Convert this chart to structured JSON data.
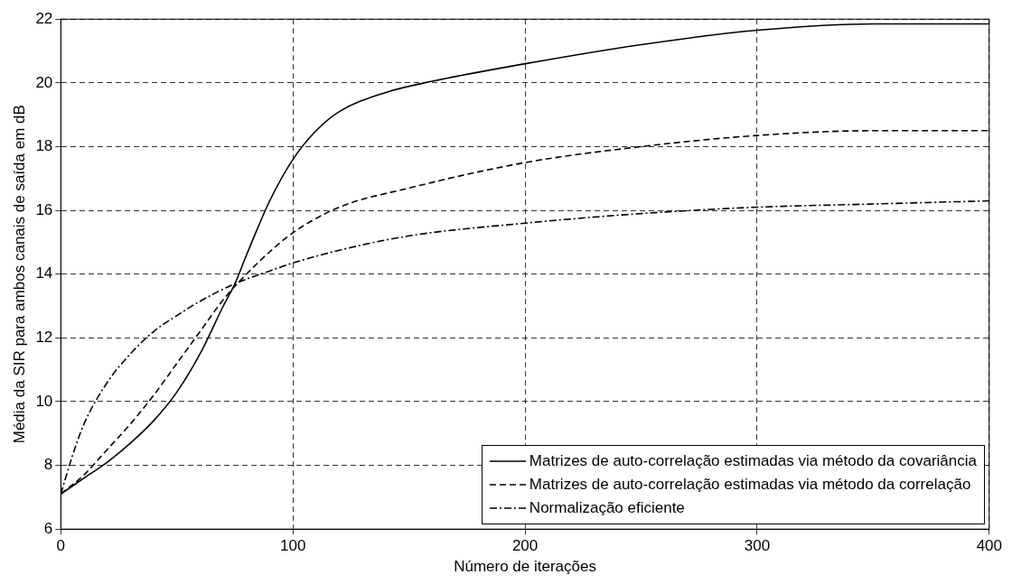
{
  "chart_data": {
    "type": "line",
    "xlabel": "Número de iterações",
    "ylabel": "Média da SIR para ambos canais de saída em dB",
    "xlim": [
      0,
      400
    ],
    "xticks": [
      0,
      100,
      200,
      300,
      400
    ],
    "ylim": [
      6,
      22
    ],
    "yticks": [
      6,
      8,
      10,
      12,
      14,
      16,
      18,
      20,
      22
    ],
    "grid": true,
    "legend": "bottom right",
    "marker": "none",
    "series": [
      {
        "name": "Matrizes de auto-correlação estimadas via método da covariância",
        "color": "#000000",
        "line_style": "solid",
        "x": [
          0,
          10,
          20,
          30,
          40,
          50,
          60,
          70,
          75,
          80,
          90,
          100,
          110,
          120,
          140,
          160,
          200,
          250,
          300,
          350,
          400
        ],
        "values": [
          7.1,
          7.6,
          8.1,
          8.7,
          9.4,
          10.3,
          11.5,
          13.0,
          13.7,
          14.6,
          16.3,
          17.6,
          18.5,
          19.1,
          19.7,
          20.05,
          20.6,
          21.2,
          21.65,
          21.85,
          21.85
        ]
      },
      {
        "name": "Matrizes de auto-correlação estimadas via método da correlação",
        "color": "#000000",
        "line_style": "dashed",
        "x": [
          0,
          10,
          20,
          30,
          40,
          50,
          60,
          70,
          80,
          90,
          100,
          120,
          150,
          200,
          250,
          300,
          350,
          400
        ],
        "values": [
          7.1,
          7.7,
          8.5,
          9.3,
          10.2,
          11.2,
          12.2,
          13.2,
          14.0,
          14.7,
          15.3,
          16.1,
          16.7,
          17.5,
          18.0,
          18.35,
          18.5,
          18.5
        ]
      },
      {
        "name": "Normalização eficiente",
        "color": "#000000",
        "line_style": "dashdot",
        "x": [
          0,
          5,
          10,
          20,
          30,
          40,
          50,
          60,
          75,
          90,
          100,
          120,
          150,
          200,
          250,
          300,
          350,
          400
        ],
        "values": [
          7.1,
          8.3,
          9.3,
          10.6,
          11.5,
          12.2,
          12.7,
          13.15,
          13.7,
          14.1,
          14.35,
          14.75,
          15.2,
          15.6,
          15.9,
          16.1,
          16.2,
          16.3
        ]
      }
    ]
  }
}
